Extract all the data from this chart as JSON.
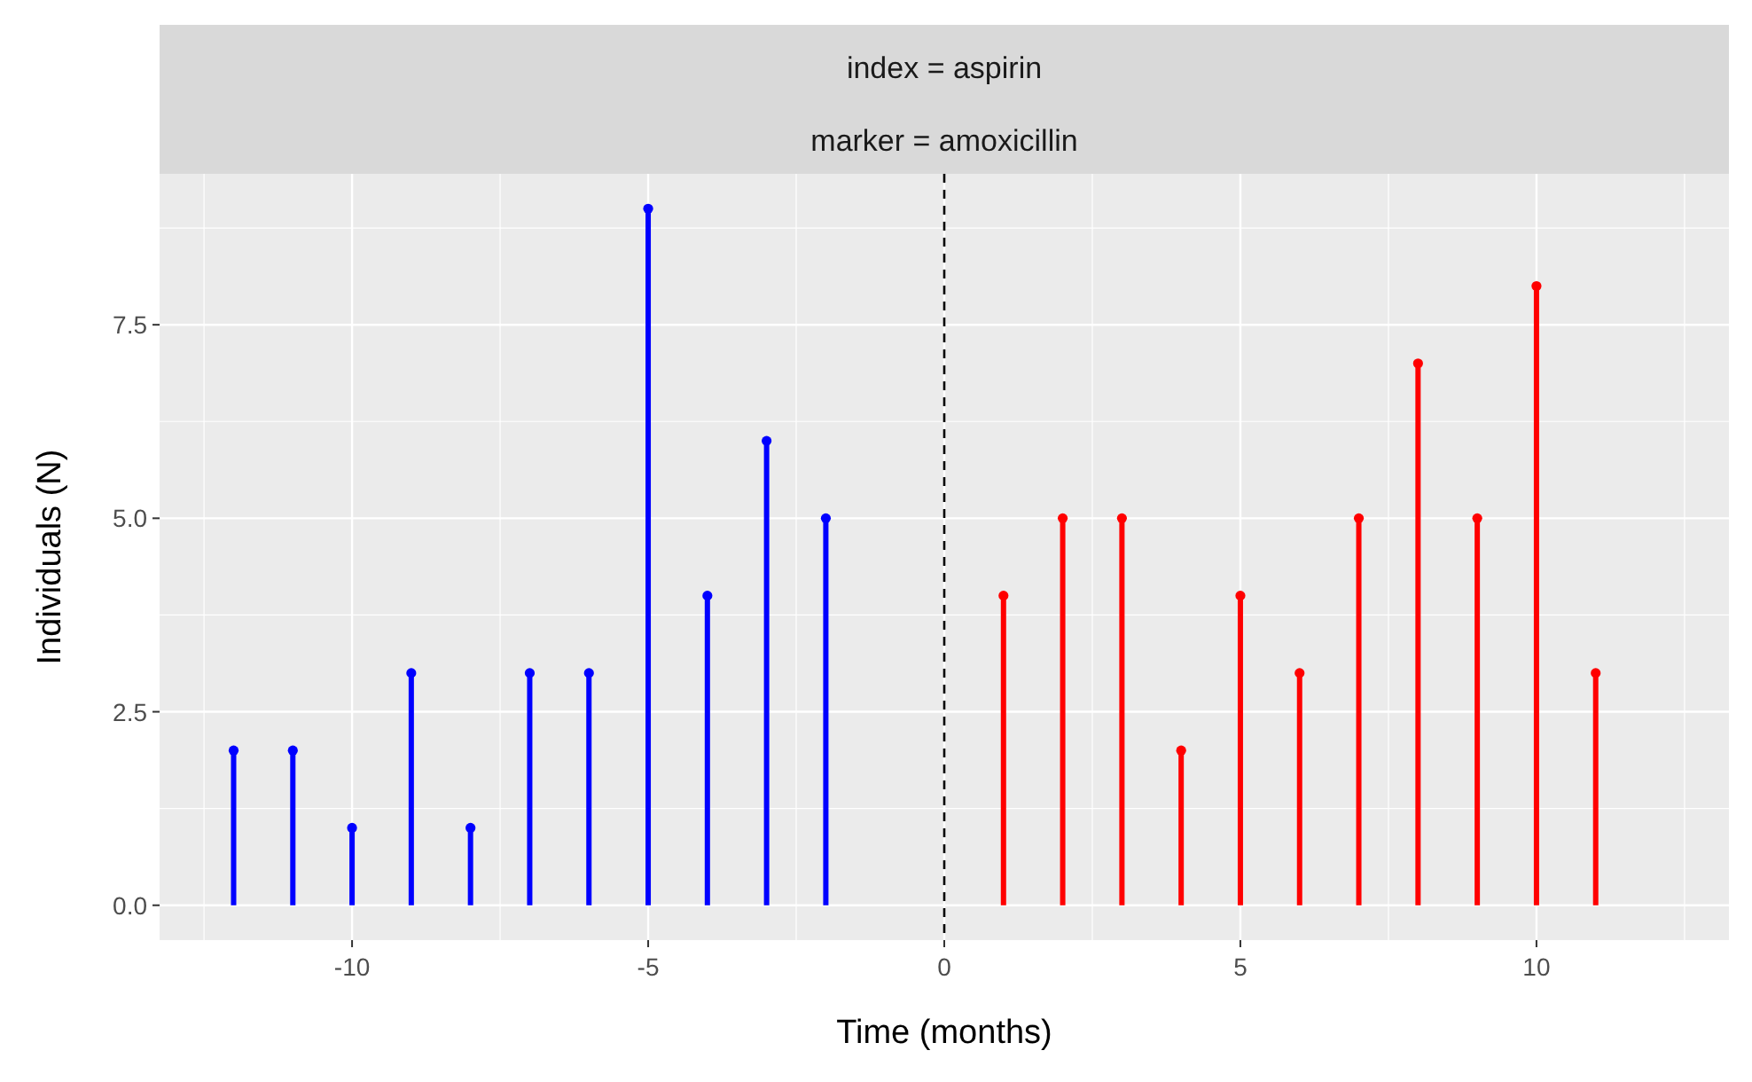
{
  "chart_data": {
    "type": "lollipop",
    "title": "index = aspirin",
    "subtitle": "marker = amoxicillin",
    "xlabel": "Time (months)",
    "ylabel": "Individuals (N)",
    "xlim": [
      -13.25,
      13.25
    ],
    "xticks": [
      -10,
      -5,
      0,
      5,
      10
    ],
    "ylim": [
      -0.45,
      9.45
    ],
    "yticks": [
      {
        "value": 0,
        "label": "0.0"
      },
      {
        "value": 2.5,
        "label": "2.5"
      },
      {
        "value": 5,
        "label": "5.0"
      },
      {
        "value": 7.5,
        "label": "7.5"
      }
    ],
    "grid": true,
    "marker": "circle",
    "ref_lines": [
      {
        "axis": "x",
        "value": 0,
        "label": null,
        "color": "#000000",
        "line_style": "dashed"
      }
    ],
    "series": [
      {
        "color": "#0000ff",
        "x": [
          -12,
          -11,
          -10,
          -9,
          -8,
          -7,
          -6,
          -5,
          -4,
          -3,
          -2
        ],
        "values": [
          2,
          2,
          1,
          3,
          1,
          3,
          3,
          9,
          4,
          6,
          5
        ]
      },
      {
        "color": "#ff0000",
        "x": [
          1,
          2,
          3,
          4,
          5,
          6,
          7,
          8,
          9,
          10,
          11
        ],
        "values": [
          4,
          5,
          5,
          2,
          4,
          3,
          5,
          7,
          5,
          8,
          3
        ]
      }
    ]
  }
}
